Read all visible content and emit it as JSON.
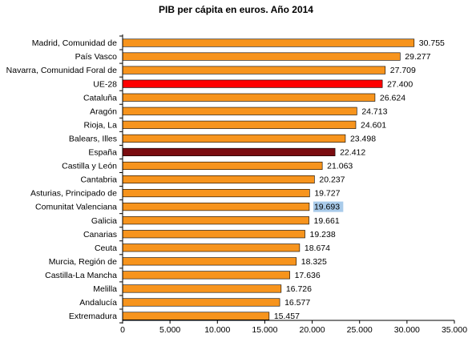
{
  "chart_data": {
    "type": "bar",
    "orientation": "horizontal",
    "title": "PIB per cápita en euros. Año 2014",
    "xlabel": "",
    "ylabel": "",
    "xlim": [
      0,
      35000
    ],
    "x_ticks": [
      0,
      5000,
      10000,
      15000,
      20000,
      25000,
      30000,
      35000
    ],
    "x_tick_labels": [
      "0",
      "5.000",
      "10.000",
      "15.000",
      "20.000",
      "25.000",
      "30.000",
      "35.000"
    ],
    "grid": false,
    "legend": "none",
    "colors": {
      "default": "#F7941D",
      "highlight_eu": "#FF0000",
      "highlight_spain": "#7B0C10",
      "label_highlight_bg": "#A9CBEA",
      "bar_edge": "#000000"
    },
    "categories": [
      "Madrid, Comunidad de",
      "País Vasco",
      "Navarra, Comunidad Foral de",
      "UE-28",
      "Cataluña",
      "Aragón",
      "Rioja, La",
      "Balears, Illes",
      "España",
      "Castilla y León",
      "Cantabria",
      "Asturias, Principado de",
      "Comunitat Valenciana",
      "Galicia",
      "Canarias",
      "Ceuta",
      "Murcia, Región de",
      "Castilla-La Mancha",
      "Melilla",
      "Andalucía",
      "Extremadura"
    ],
    "values": [
      30755,
      29277,
      27709,
      27400,
      26624,
      24713,
      24601,
      23498,
      22412,
      21063,
      20237,
      19727,
      19693,
      19661,
      19238,
      18674,
      18325,
      17636,
      16726,
      16577,
      15457
    ],
    "value_labels": [
      "30.755",
      "29.277",
      "27.709",
      "27.400",
      "26.624",
      "24.713",
      "24.601",
      "23.498",
      "22.412",
      "21.063",
      "20.237",
      "19.727",
      "19.693",
      "19.661",
      "19.238",
      "18.674",
      "18.325",
      "17.636",
      "16.726",
      "16.577",
      "15.457"
    ],
    "bar_color_keys": [
      "default",
      "default",
      "default",
      "highlight_eu",
      "default",
      "default",
      "default",
      "default",
      "highlight_spain",
      "default",
      "default",
      "default",
      "default",
      "default",
      "default",
      "default",
      "default",
      "default",
      "default",
      "default",
      "default"
    ],
    "highlighted_value_label_index": 12
  }
}
